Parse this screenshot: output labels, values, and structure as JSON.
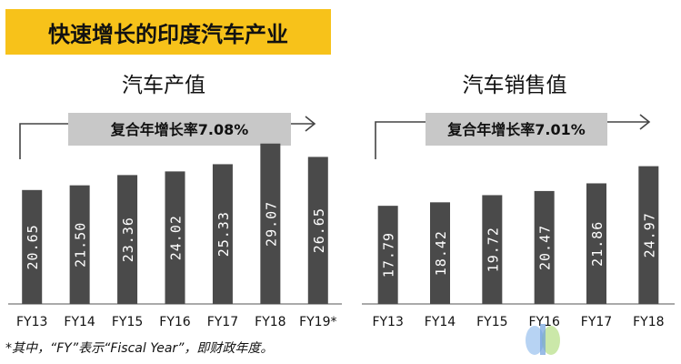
{
  "page": {
    "title": "快速增长的印度汽车产业",
    "footnote": "*其中，“FY”表示“Fiscal Year”，即财政年度。"
  },
  "colors": {
    "title_bar": "#f7c21a",
    "bar": "#4a4a4a",
    "bar_label": "#ffffff",
    "cagr_box": "#c8c8c8",
    "arrow": "#444444"
  },
  "chart_data": [
    {
      "type": "bar",
      "title": "汽车产值",
      "cagr_label": "复合年增长率7.08%",
      "categories": [
        "FY13",
        "FY14",
        "FY15",
        "FY16",
        "FY17",
        "FY18",
        "FY19*"
      ],
      "values": [
        20.65,
        21.5,
        23.36,
        24.02,
        25.33,
        29.07,
        26.65
      ],
      "value_labels": [
        "20.65",
        "21.50",
        "23.36",
        "24.02",
        "25.33",
        "29.07",
        "26.65"
      ],
      "ylim": [
        0,
        32
      ]
    },
    {
      "type": "bar",
      "title": "汽车销售值",
      "cagr_label": "复合年增长率7.01%",
      "categories": [
        "FY13",
        "FY14",
        "FY15",
        "FY16",
        "FY17",
        "FY18"
      ],
      "values": [
        17.79,
        18.42,
        19.72,
        20.47,
        21.86,
        24.97
      ],
      "value_labels": [
        "17.79",
        "18.42",
        "19.72",
        "20.47",
        "21.86",
        "24.97"
      ],
      "ylim": [
        0,
        32
      ]
    }
  ]
}
